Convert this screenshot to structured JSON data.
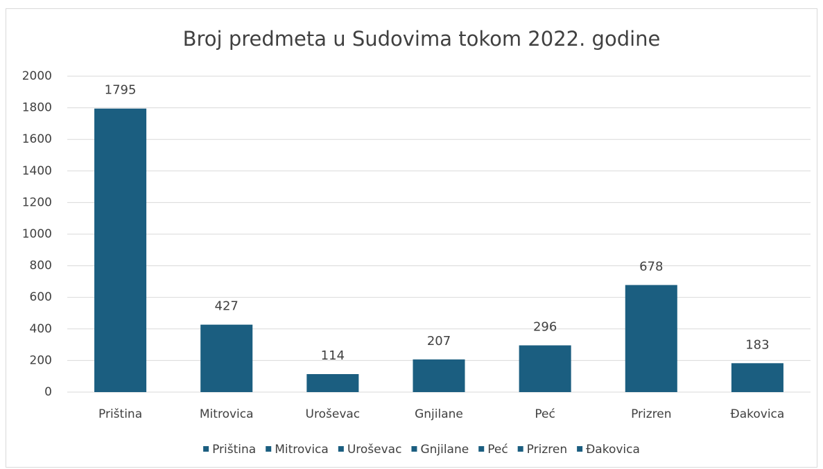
{
  "chart_data": {
    "type": "bar",
    "title": "Broj predmeta u Sudovima tokom 2022. godine",
    "categories": [
      "Priština",
      "Mitrovica",
      "Uroševac",
      "Gnjilane",
      "Peć",
      "Prizren",
      "Đakovica"
    ],
    "values": [
      1795,
      427,
      114,
      207,
      296,
      678,
      183
    ],
    "color": "#1b5e80",
    "ylim": [
      0,
      2000
    ],
    "yticks": [
      0,
      200,
      400,
      600,
      800,
      1000,
      1200,
      1400,
      1600,
      1800,
      2000
    ],
    "grid": true,
    "legend": "bottom"
  }
}
